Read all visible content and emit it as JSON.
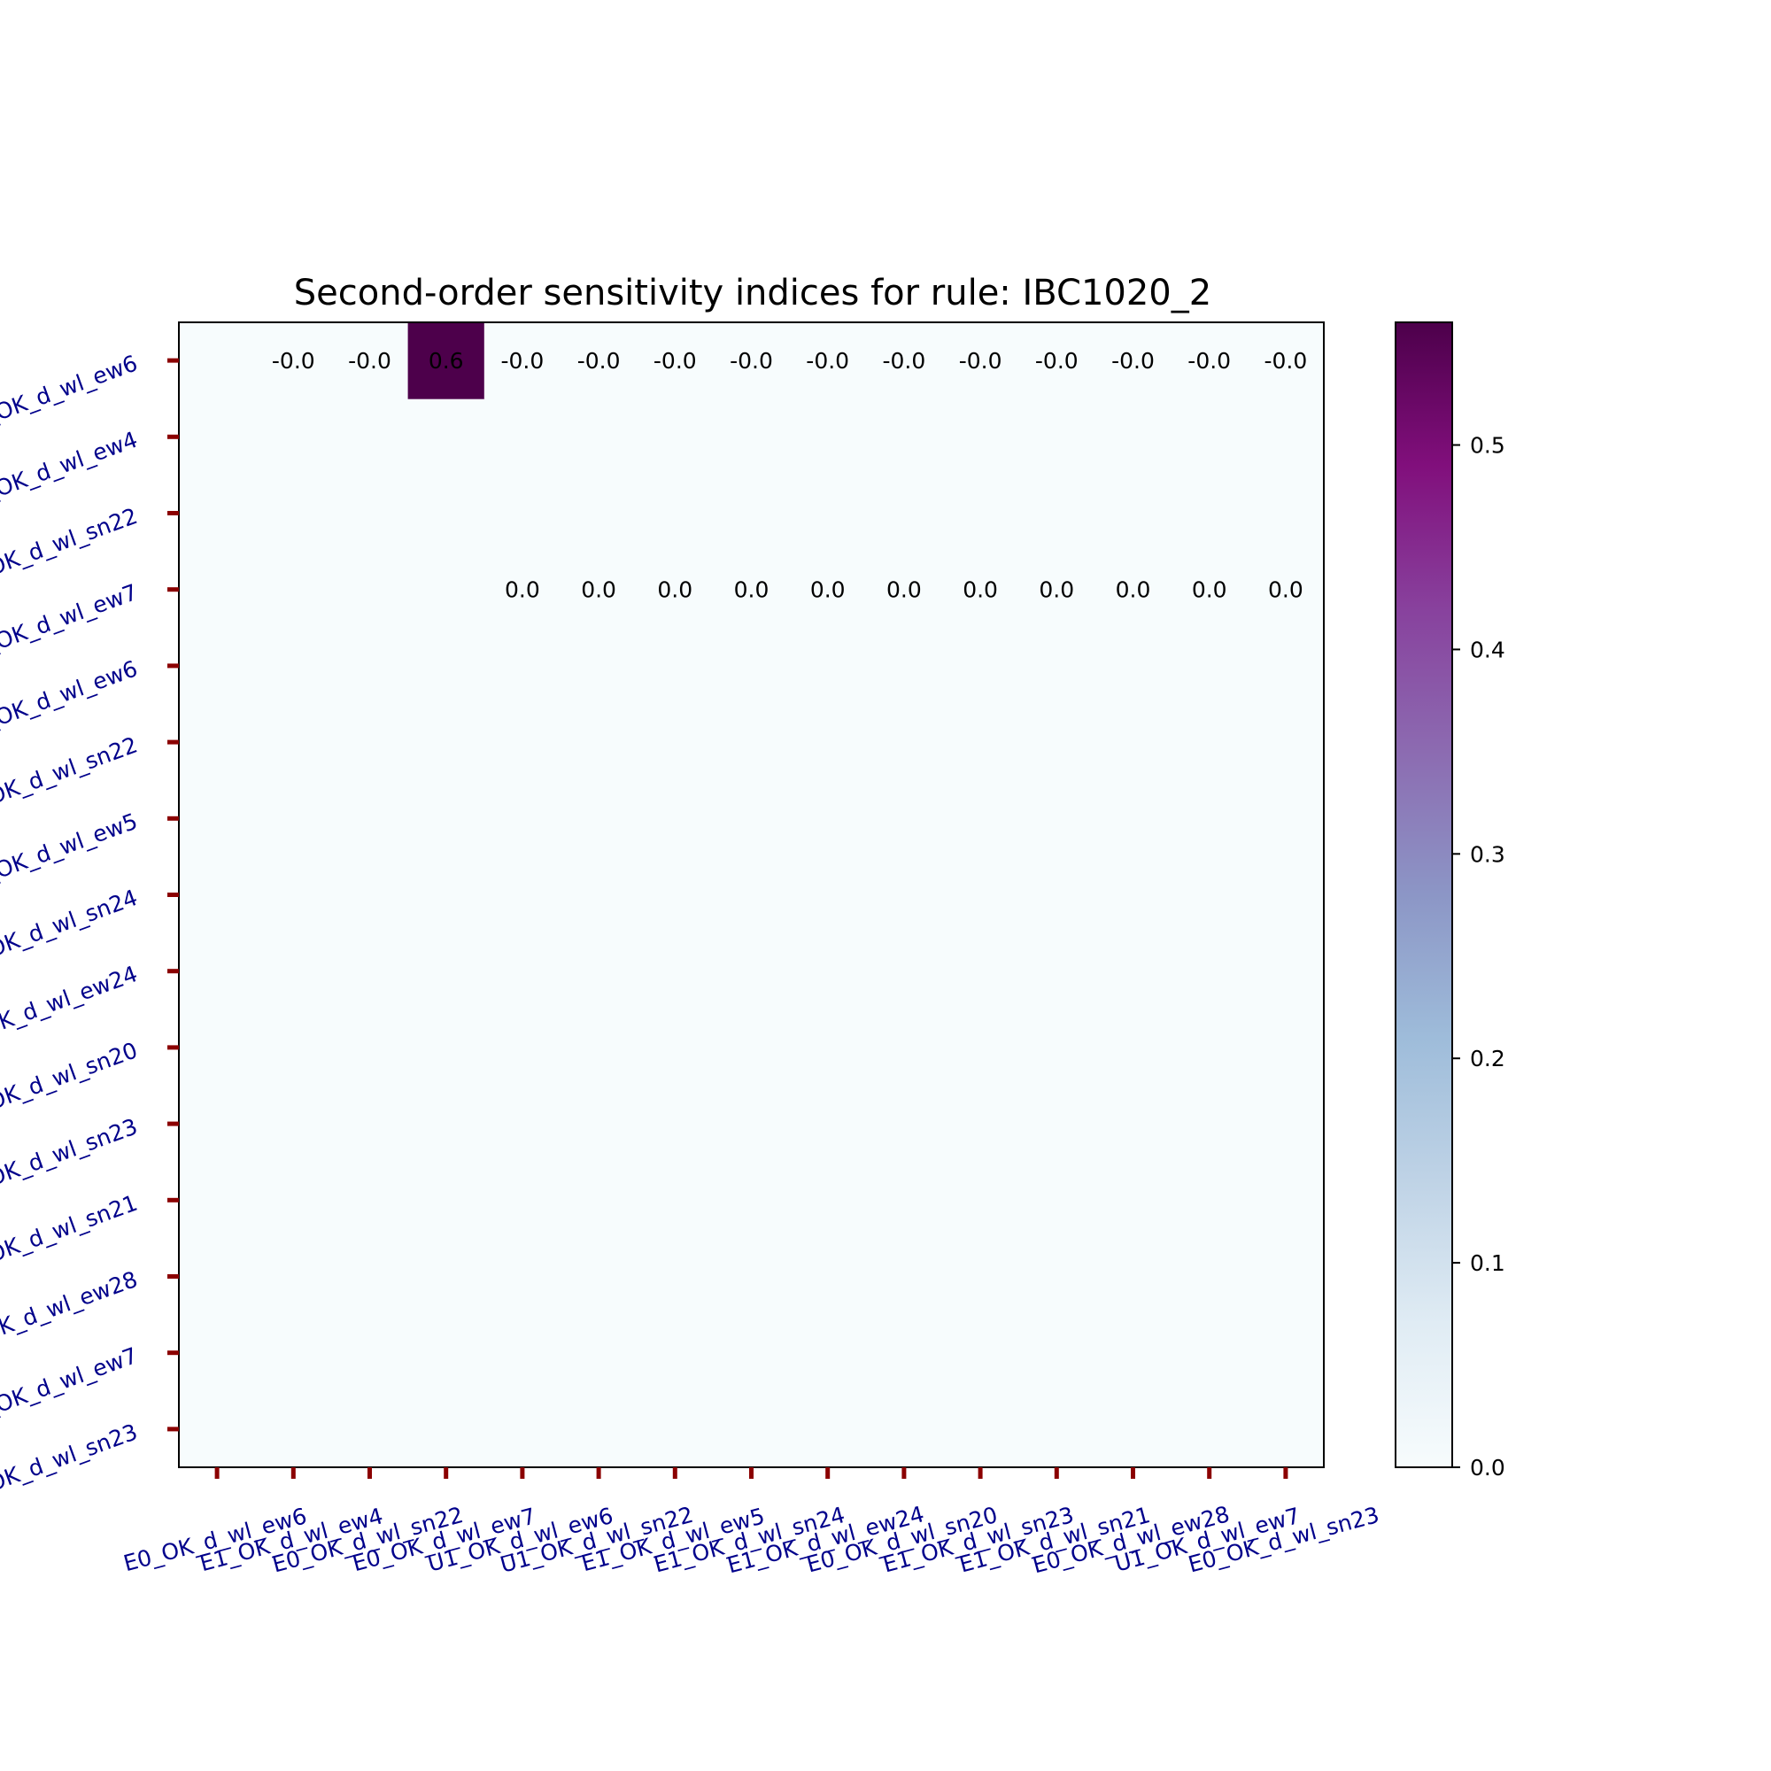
{
  "chart_data": {
    "type": "heatmap",
    "title": "Second-order sensitivity indices for rule: IBC1020_2",
    "labels": [
      "E0_OK_d_wl_ew6",
      "E1_OK_d_wl_ew4",
      "E0_OK_d_wl_sn22",
      "E0_OK_d_wl_ew7",
      "U1_OK_d_wl_ew6",
      "U1_OK_d_wl_sn22",
      "E1_OK_d_wl_ew5",
      "E1_OK_d_wl_sn24",
      "E1_OK_d_wl_ew24",
      "E0_OK_d_wl_sn20",
      "E1_OK_d_wl_sn23",
      "E1_OK_d_wl_sn21",
      "E0_OK_d_wl_ew28",
      "U1_OK_d_wl_ew7",
      "E0_OK_d_wl_sn23"
    ],
    "cells": [
      {
        "row": 0,
        "col": 1,
        "value": -0.0,
        "label": "-0.0"
      },
      {
        "row": 0,
        "col": 2,
        "value": -0.0,
        "label": "-0.0"
      },
      {
        "row": 0,
        "col": 3,
        "value": 0.56,
        "label": "0.6"
      },
      {
        "row": 0,
        "col": 4,
        "value": -0.0,
        "label": "-0.0"
      },
      {
        "row": 0,
        "col": 5,
        "value": -0.0,
        "label": "-0.0"
      },
      {
        "row": 0,
        "col": 6,
        "value": -0.0,
        "label": "-0.0"
      },
      {
        "row": 0,
        "col": 7,
        "value": -0.0,
        "label": "-0.0"
      },
      {
        "row": 0,
        "col": 8,
        "value": -0.0,
        "label": "-0.0"
      },
      {
        "row": 0,
        "col": 9,
        "value": -0.0,
        "label": "-0.0"
      },
      {
        "row": 0,
        "col": 10,
        "value": -0.0,
        "label": "-0.0"
      },
      {
        "row": 0,
        "col": 11,
        "value": -0.0,
        "label": "-0.0"
      },
      {
        "row": 0,
        "col": 12,
        "value": -0.0,
        "label": "-0.0"
      },
      {
        "row": 0,
        "col": 13,
        "value": -0.0,
        "label": "-0.0"
      },
      {
        "row": 0,
        "col": 14,
        "value": -0.0,
        "label": "-0.0"
      },
      {
        "row": 3,
        "col": 4,
        "value": 0.0,
        "label": "0.0"
      },
      {
        "row": 3,
        "col": 5,
        "value": 0.0,
        "label": "0.0"
      },
      {
        "row": 3,
        "col": 6,
        "value": 0.0,
        "label": "0.0"
      },
      {
        "row": 3,
        "col": 7,
        "value": 0.0,
        "label": "0.0"
      },
      {
        "row": 3,
        "col": 8,
        "value": 0.0,
        "label": "0.0"
      },
      {
        "row": 3,
        "col": 9,
        "value": 0.0,
        "label": "0.0"
      },
      {
        "row": 3,
        "col": 10,
        "value": 0.0,
        "label": "0.0"
      },
      {
        "row": 3,
        "col": 11,
        "value": 0.0,
        "label": "0.0"
      },
      {
        "row": 3,
        "col": 12,
        "value": 0.0,
        "label": "0.0"
      },
      {
        "row": 3,
        "col": 13,
        "value": 0.0,
        "label": "0.0"
      },
      {
        "row": 3,
        "col": 14,
        "value": 0.0,
        "label": "0.0"
      }
    ],
    "colorbar": {
      "min": 0.0,
      "max": 0.56,
      "ticks": [
        0.0,
        0.1,
        0.2,
        0.3,
        0.4,
        0.5
      ],
      "tick_labels": [
        "0.0",
        "0.1",
        "0.2",
        "0.3",
        "0.4",
        "0.5"
      ],
      "colormap": "BuPu",
      "stops": [
        "#f7fcfd",
        "#e0ecf4",
        "#bfd3e6",
        "#9ebcda",
        "#8c96c6",
        "#8c6bb1",
        "#88419d",
        "#810f7c",
        "#4d004b"
      ]
    },
    "tick_color": "#8b0000",
    "label_color": "#00008b",
    "background_color": "#f7fcfd",
    "grid": false
  }
}
